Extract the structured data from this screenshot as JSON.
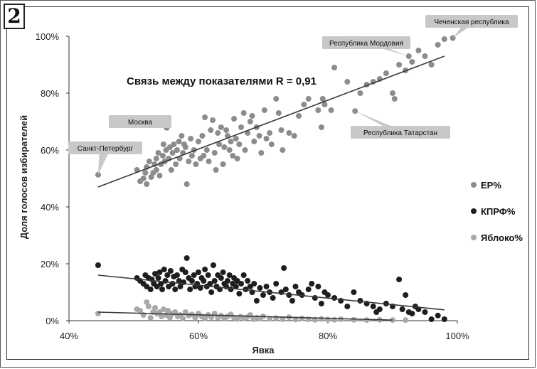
{
  "figure": {
    "number": "2"
  },
  "chart_data": {
    "type": "scatter",
    "xlabel": "Явка",
    "ylabel": "Доля голосов избирателей",
    "xlim": [
      40,
      100
    ],
    "ylim": [
      0,
      100
    ],
    "x_ticks": [
      40,
      60,
      80,
      100
    ],
    "y_ticks": [
      0,
      20,
      40,
      60,
      80,
      100
    ],
    "tick_suffix": "%",
    "grid": false,
    "legend_position": "right",
    "annotation": "Связь между показателями R = 0,91",
    "colors": {
      "ER": "#8c8c8c",
      "KPRF": "#1e1e1e",
      "Yabloko": "#a9a9a9",
      "trend": "#3a3a3a",
      "callout": "#c8c8c8"
    },
    "callouts": [
      {
        "text": "Чеченская республика",
        "x": 99.3,
        "y": 99.4
      },
      {
        "text": "Республика Мордовия",
        "x": 92.5,
        "y": 93
      },
      {
        "text": "Москва",
        "x": 55.1,
        "y": 67.8
      },
      {
        "text": "Санкт-Петербург",
        "x": 44.5,
        "y": 51.3
      },
      {
        "text": "Республика Татарстан",
        "x": 84.2,
        "y": 73.7
      }
    ],
    "series": [
      {
        "name": "ЕР%",
        "trend": [
          [
            44.5,
            47
          ],
          [
            98,
            93
          ]
        ],
        "points": [
          [
            44.5,
            51.3
          ],
          [
            50.5,
            53
          ],
          [
            51,
            49
          ],
          [
            51.5,
            50
          ],
          [
            51.8,
            52
          ],
          [
            52,
            54
          ],
          [
            52,
            48
          ],
          [
            52.4,
            56
          ],
          [
            52.7,
            50.5
          ],
          [
            53,
            52
          ],
          [
            53.2,
            55
          ],
          [
            53.5,
            57
          ],
          [
            53.5,
            53
          ],
          [
            53.8,
            59
          ],
          [
            54,
            51
          ],
          [
            54.2,
            55
          ],
          [
            54.5,
            58
          ],
          [
            54.6,
            62
          ],
          [
            54.8,
            56
          ],
          [
            55,
            60
          ],
          [
            55.1,
            67.8
          ],
          [
            55.4,
            57
          ],
          [
            55.6,
            61
          ],
          [
            55.8,
            53
          ],
          [
            56,
            59
          ],
          [
            56.2,
            62
          ],
          [
            56.5,
            55
          ],
          [
            56.7,
            60
          ],
          [
            57,
            63
          ],
          [
            57.1,
            57
          ],
          [
            57.4,
            65
          ],
          [
            57.6,
            59
          ],
          [
            57.8,
            62
          ],
          [
            58,
            61
          ],
          [
            58.2,
            48
          ],
          [
            58.5,
            56
          ],
          [
            58.8,
            64
          ],
          [
            59,
            58
          ],
          [
            59.3,
            60
          ],
          [
            59.6,
            55
          ],
          [
            60,
            63
          ],
          [
            60.3,
            57
          ],
          [
            60.6,
            65
          ],
          [
            60.8,
            58
          ],
          [
            61,
            71.5
          ],
          [
            61.3,
            60
          ],
          [
            61.6,
            56
          ],
          [
            61.9,
            67
          ],
          [
            62.2,
            70.5
          ],
          [
            62.5,
            59
          ],
          [
            62.7,
            53
          ],
          [
            63,
            66
          ],
          [
            63.2,
            62
          ],
          [
            63.5,
            68
          ],
          [
            63.8,
            55
          ],
          [
            64,
            61
          ],
          [
            64.3,
            67
          ],
          [
            64.5,
            65
          ],
          [
            64.8,
            60
          ],
          [
            65,
            63
          ],
          [
            65.3,
            58
          ],
          [
            65.5,
            71
          ],
          [
            65.8,
            64
          ],
          [
            66,
            57
          ],
          [
            66.3,
            62
          ],
          [
            66.6,
            68
          ],
          [
            67,
            73
          ],
          [
            67.2,
            60
          ],
          [
            67.6,
            66
          ],
          [
            68,
            70
          ],
          [
            68.3,
            72
          ],
          [
            68.6,
            63
          ],
          [
            69,
            68
          ],
          [
            69.4,
            65
          ],
          [
            69.7,
            59
          ],
          [
            70.2,
            74
          ],
          [
            70.5,
            64
          ],
          [
            71,
            66
          ],
          [
            71.3,
            62
          ],
          [
            72,
            78
          ],
          [
            72.4,
            73
          ],
          [
            72.8,
            67
          ],
          [
            73,
            60
          ],
          [
            74,
            66
          ],
          [
            74.8,
            65
          ],
          [
            75.5,
            72
          ],
          [
            76.3,
            76
          ],
          [
            77,
            78
          ],
          [
            78.5,
            74
          ],
          [
            79,
            68
          ],
          [
            79.2,
            78
          ],
          [
            79.5,
            76
          ],
          [
            80.5,
            74
          ],
          [
            81,
            89
          ],
          [
            83,
            84
          ],
          [
            84.2,
            73.7
          ],
          [
            85,
            80
          ],
          [
            86,
            83
          ],
          [
            87,
            84
          ],
          [
            88,
            85
          ],
          [
            89,
            87
          ],
          [
            90,
            80
          ],
          [
            90.3,
            78
          ],
          [
            91,
            90
          ],
          [
            92,
            88
          ],
          [
            92.5,
            93
          ],
          [
            93,
            91
          ],
          [
            94,
            95
          ],
          [
            95,
            93
          ],
          [
            96,
            90
          ],
          [
            97,
            97
          ],
          [
            98,
            99
          ],
          [
            99.3,
            99.4
          ]
        ]
      },
      {
        "name": "КПРФ%",
        "trend": [
          [
            44.5,
            16
          ],
          [
            98,
            3.8
          ]
        ],
        "points": [
          [
            44.5,
            19.5
          ],
          [
            50.5,
            15
          ],
          [
            51,
            14
          ],
          [
            51.5,
            13
          ],
          [
            51.8,
            16
          ],
          [
            52,
            12
          ],
          [
            52.3,
            15
          ],
          [
            52.6,
            11
          ],
          [
            52.8,
            14.5
          ],
          [
            53.1,
            13
          ],
          [
            53.3,
            16.5
          ],
          [
            53.6,
            12
          ],
          [
            53.8,
            15
          ],
          [
            54,
            17
          ],
          [
            54.2,
            13
          ],
          [
            54.4,
            11
          ],
          [
            54.7,
            18
          ],
          [
            54.9,
            14
          ],
          [
            55.2,
            16
          ],
          [
            55.4,
            12
          ],
          [
            55.7,
            17.5
          ],
          [
            56,
            13
          ],
          [
            56.2,
            15.5
          ],
          [
            56.4,
            11
          ],
          [
            56.7,
            16
          ],
          [
            57,
            14
          ],
          [
            57.2,
            12
          ],
          [
            57.5,
            18
          ],
          [
            57.7,
            13.5
          ],
          [
            58,
            17
          ],
          [
            58.2,
            22
          ],
          [
            58.5,
            15
          ],
          [
            58.7,
            11
          ],
          [
            59,
            14
          ],
          [
            59.3,
            16
          ],
          [
            59.5,
            12
          ],
          [
            59.8,
            13
          ],
          [
            60,
            17
          ],
          [
            60.3,
            11.5
          ],
          [
            60.5,
            15
          ],
          [
            60.8,
            14
          ],
          [
            61,
            18
          ],
          [
            61.3,
            12
          ],
          [
            61.5,
            16
          ],
          [
            61.8,
            13
          ],
          [
            62,
            10
          ],
          [
            62.3,
            19.5
          ],
          [
            62.5,
            14
          ],
          [
            62.8,
            12
          ],
          [
            63,
            16
          ],
          [
            63.3,
            11
          ],
          [
            63.5,
            15
          ],
          [
            63.8,
            17
          ],
          [
            64,
            13
          ],
          [
            64.3,
            12
          ],
          [
            64.5,
            14
          ],
          [
            64.8,
            16
          ],
          [
            65,
            11
          ],
          [
            65.3,
            13
          ],
          [
            65.5,
            15
          ],
          [
            65.8,
            12
          ],
          [
            66,
            14
          ],
          [
            66.3,
            9.5
          ],
          [
            66.6,
            13
          ],
          [
            67,
            16
          ],
          [
            67.3,
            11
          ],
          [
            67.6,
            14
          ],
          [
            68,
            12
          ],
          [
            68.3,
            10
          ],
          [
            68.6,
            13
          ],
          [
            69,
            7
          ],
          [
            69.5,
            11.5
          ],
          [
            70,
            9
          ],
          [
            70.5,
            12
          ],
          [
            71,
            10
          ],
          [
            71.5,
            8
          ],
          [
            72,
            13
          ],
          [
            72.8,
            10
          ],
          [
            73.2,
            18.5
          ],
          [
            73.5,
            11
          ],
          [
            74,
            9
          ],
          [
            74.5,
            7
          ],
          [
            75,
            12
          ],
          [
            75.5,
            10
          ],
          [
            76,
            9
          ],
          [
            77,
            11
          ],
          [
            77.5,
            13
          ],
          [
            78,
            8
          ],
          [
            78.5,
            12
          ],
          [
            79,
            6
          ],
          [
            79.5,
            10
          ],
          [
            80,
            9
          ],
          [
            81,
            8
          ],
          [
            82,
            7
          ],
          [
            83,
            5
          ],
          [
            84,
            10
          ],
          [
            85,
            7
          ],
          [
            86,
            6
          ],
          [
            87,
            5
          ],
          [
            87.5,
            3
          ],
          [
            88,
            4
          ],
          [
            89,
            6
          ],
          [
            90,
            5
          ],
          [
            91,
            14.5
          ],
          [
            91.5,
            4
          ],
          [
            92,
            9
          ],
          [
            92.5,
            3
          ],
          [
            93,
            2.5
          ],
          [
            93.5,
            5
          ],
          [
            94,
            4
          ],
          [
            95,
            3
          ],
          [
            96,
            0.5
          ],
          [
            97,
            1.8
          ],
          [
            98,
            0.5
          ]
        ]
      },
      {
        "name": "Яблоко%",
        "trend": [
          [
            44.5,
            3
          ],
          [
            90,
            0.2
          ]
        ],
        "points": [
          [
            44.5,
            2.5
          ],
          [
            50.5,
            4
          ],
          [
            51,
            3.5
          ],
          [
            51.5,
            2
          ],
          [
            52,
            6.5
          ],
          [
            52.3,
            5
          ],
          [
            52.6,
            1
          ],
          [
            53,
            3
          ],
          [
            53.3,
            4.5
          ],
          [
            53.6,
            2.5
          ],
          [
            54,
            3
          ],
          [
            54.3,
            1.5
          ],
          [
            54.6,
            4
          ],
          [
            55,
            2
          ],
          [
            55.3,
            3.5
          ],
          [
            55.6,
            1
          ],
          [
            56,
            2.5
          ],
          [
            56.4,
            3
          ],
          [
            56.8,
            1.5
          ],
          [
            57.2,
            2
          ],
          [
            57.6,
            0.8
          ],
          [
            58,
            3
          ],
          [
            58.5,
            1.8
          ],
          [
            59,
            2.2
          ],
          [
            59.5,
            1
          ],
          [
            60,
            2.5
          ],
          [
            60.5,
            1.5
          ],
          [
            61,
            0.8
          ],
          [
            61.5,
            2
          ],
          [
            62,
            1.2
          ],
          [
            62.5,
            2.5
          ],
          [
            63,
            1
          ],
          [
            63.5,
            1.8
          ],
          [
            64,
            0.7
          ],
          [
            64.5,
            1.5
          ],
          [
            65,
            2.2
          ],
          [
            65.5,
            1
          ],
          [
            66,
            0.6
          ],
          [
            66.5,
            1.4
          ],
          [
            67,
            0.8
          ],
          [
            67.5,
            1.2
          ],
          [
            68,
            2
          ],
          [
            68.5,
            0.5
          ],
          [
            69,
            1
          ],
          [
            69.5,
            0.7
          ],
          [
            70,
            1.5
          ],
          [
            71,
            0.6
          ],
          [
            72,
            0.9
          ],
          [
            73,
            0.5
          ],
          [
            74,
            1.2
          ],
          [
            75,
            0.4
          ],
          [
            76,
            0.8
          ],
          [
            77,
            0.5
          ],
          [
            78,
            0.3
          ],
          [
            79,
            0.6
          ],
          [
            80,
            0.4
          ],
          [
            81,
            0.3
          ],
          [
            82,
            0.5
          ],
          [
            84,
            0.3
          ],
          [
            86,
            0.2
          ],
          [
            88,
            0.3
          ],
          [
            90,
            0.2
          ],
          [
            92,
            0.2
          ]
        ]
      }
    ]
  }
}
